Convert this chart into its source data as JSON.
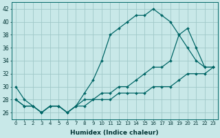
{
  "xlabel": "Humidex (Indice chaleur)",
  "background_color": "#c8e8e8",
  "grid_color": "#a0c8c8",
  "line_color": "#006666",
  "xlim": [
    -0.5,
    23.5
  ],
  "ylim": [
    25,
    43
  ],
  "yticks": [
    26,
    28,
    30,
    32,
    34,
    36,
    38,
    40,
    42
  ],
  "xticks": [
    0,
    1,
    2,
    3,
    4,
    5,
    6,
    7,
    8,
    9,
    10,
    11,
    12,
    13,
    14,
    15,
    16,
    17,
    18,
    19,
    20,
    21,
    22,
    23
  ],
  "line1": [
    30,
    28,
    27,
    26,
    27,
    27,
    26,
    27,
    29,
    31,
    34,
    38,
    39,
    40,
    41,
    41,
    42,
    41,
    40,
    38,
    36,
    34,
    33,
    33
  ],
  "line2": [
    28,
    27,
    27,
    26,
    27,
    27,
    26,
    27,
    28,
    28,
    29,
    29,
    30,
    30,
    31,
    32,
    33,
    33,
    34,
    38,
    39,
    36,
    33,
    33
  ],
  "line3": [
    28,
    27,
    27,
    26,
    27,
    27,
    26,
    27,
    27,
    28,
    28,
    28,
    29,
    29,
    29,
    29,
    30,
    30,
    30,
    31,
    32,
    32,
    32,
    33
  ]
}
